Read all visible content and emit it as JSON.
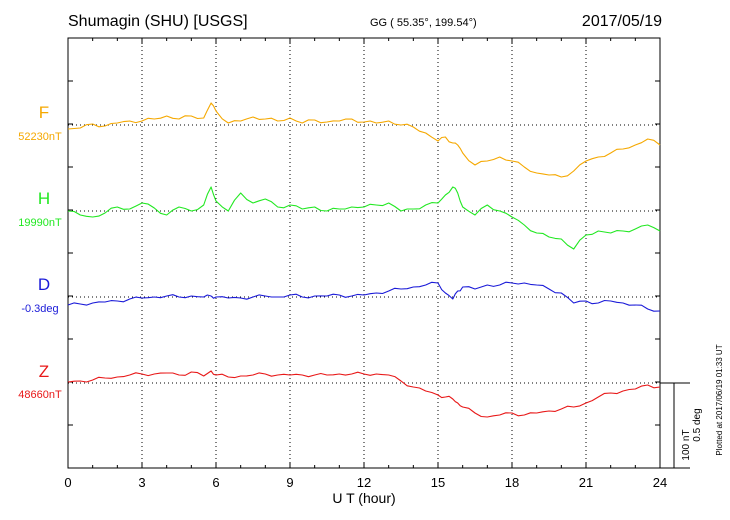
{
  "header": {
    "station": "Shumagin (SHU)  [USGS]",
    "coords": "GG ( 55.35°, 199.54°)",
    "date": "2017/05/19"
  },
  "footer": {
    "plotted_note": "Plotted at 2017/06/19 01:33 UT"
  },
  "scale_bar": {
    "label_nt": "100 nT",
    "label_deg": "0.5 deg"
  },
  "chart_data": {
    "type": "line",
    "title": "Shumagin (SHU)  [USGS]",
    "xlabel": "U T (hour)",
    "ylabel": "",
    "xlim": [
      0,
      24
    ],
    "xticks": [
      0,
      3,
      6,
      9,
      12,
      15,
      18,
      21,
      24
    ],
    "xtick_labels": [
      "0",
      "3",
      "6",
      "9",
      "12",
      "15",
      "18",
      "21",
      "24"
    ],
    "grid": "dotted, vertical every 3 h and baseline per trace",
    "y_scale_note": "100 nT / 0.5 deg per scale bar; relative offsets from baseline",
    "series": [
      {
        "name": "F",
        "baseline_label": "52230nT",
        "color": "#f5a800",
        "x": [
          0,
          0.5,
          1,
          1.5,
          2,
          2.5,
          3,
          3.5,
          4,
          4.5,
          5,
          5.5,
          5.8,
          6,
          6.5,
          7,
          7.5,
          8,
          8.5,
          9,
          9.5,
          10,
          10.5,
          11,
          11.5,
          12,
          12.5,
          13,
          13.5,
          14,
          14.5,
          15,
          15.3,
          15.6,
          15.8,
          16,
          16.5,
          17,
          17.5,
          18,
          18.5,
          19,
          19.5,
          20,
          20.5,
          21,
          21.5,
          22,
          22.5,
          23,
          23.5,
          24
        ],
        "values": [
          -4,
          -3,
          1,
          -1,
          2,
          4,
          4,
          6,
          9,
          6,
          9,
          7,
          22,
          14,
          2,
          4,
          8,
          6,
          4,
          7,
          2,
          5,
          3,
          4,
          6,
          3,
          2,
          4,
          0,
          -2,
          -8,
          -16,
          -12,
          -18,
          -20,
          -28,
          -40,
          -36,
          -32,
          -36,
          -42,
          -48,
          -50,
          -52,
          -46,
          -36,
          -32,
          -28,
          -24,
          -20,
          -14,
          -20
        ]
      },
      {
        "name": "H",
        "baseline_label": "19990nT",
        "color": "#22e822",
        "x": [
          0,
          0.5,
          1,
          1.5,
          2,
          2.5,
          3,
          3.5,
          4,
          4.5,
          5,
          5.5,
          5.8,
          6,
          6.5,
          7,
          7.5,
          8,
          8.5,
          9,
          9.5,
          10,
          10.5,
          11,
          11.5,
          12,
          12.5,
          13,
          13.5,
          14,
          14.5,
          15,
          15.3,
          15.6,
          15.8,
          16,
          16.5,
          17,
          17.5,
          18,
          18.5,
          19,
          19.5,
          20,
          20.5,
          21,
          21.5,
          22,
          22.5,
          23,
          23.5,
          24
        ],
        "values": [
          0,
          -4,
          -6,
          -2,
          4,
          2,
          8,
          3,
          -4,
          4,
          0,
          6,
          24,
          10,
          0,
          18,
          8,
          12,
          4,
          6,
          2,
          4,
          0,
          2,
          4,
          4,
          6,
          8,
          0,
          2,
          6,
          8,
          16,
          24,
          18,
          4,
          -4,
          6,
          0,
          -6,
          -14,
          -22,
          -26,
          -28,
          -38,
          -24,
          -20,
          -22,
          -20,
          -18,
          -14,
          -20
        ]
      },
      {
        "name": "D",
        "baseline_label": "-0.3deg",
        "color": "#1a1ad8",
        "x": [
          0,
          0.5,
          1,
          1.5,
          2,
          2.5,
          3,
          3.5,
          4,
          4.5,
          5,
          5.5,
          5.8,
          6,
          6.5,
          7,
          7.5,
          8,
          8.5,
          9,
          9.5,
          10,
          10.5,
          11,
          11.5,
          12,
          12.5,
          13,
          13.5,
          14,
          14.5,
          15,
          15.3,
          15.6,
          15.8,
          16,
          16.5,
          17,
          17.5,
          18,
          18.5,
          19,
          19.5,
          20,
          20.5,
          21,
          21.5,
          22,
          22.5,
          23,
          23.5,
          24
        ],
        "values": [
          -8,
          -7,
          -6,
          -5,
          -4,
          -2,
          -1,
          0,
          1,
          0,
          1,
          0,
          1,
          0,
          -1,
          -1,
          0,
          1,
          0,
          2,
          0,
          1,
          1,
          2,
          1,
          2,
          4,
          6,
          8,
          10,
          12,
          14,
          4,
          -2,
          6,
          10,
          8,
          12,
          12,
          14,
          14,
          12,
          8,
          4,
          -6,
          -4,
          -6,
          -4,
          -6,
          -8,
          -12,
          -14
        ]
      },
      {
        "name": "Z",
        "baseline_label": "48660nT",
        "color": "#e81818",
        "x": [
          0,
          0.5,
          1,
          1.5,
          2,
          2.5,
          3,
          3.5,
          4,
          4.5,
          5,
          5.5,
          5.8,
          6,
          6.5,
          7,
          7.5,
          8,
          8.5,
          9,
          9.5,
          10,
          10.5,
          11,
          11.5,
          12,
          12.5,
          13,
          13.5,
          14,
          14.5,
          15,
          15.3,
          15.6,
          15.8,
          16,
          16.5,
          17,
          17.5,
          18,
          18.5,
          19,
          19.5,
          20,
          20.5,
          21,
          21.5,
          22,
          22.5,
          23,
          23.5,
          24
        ],
        "values": [
          1,
          2,
          3,
          5,
          6,
          8,
          9,
          9,
          10,
          8,
          11,
          7,
          12,
          8,
          6,
          7,
          8,
          9,
          8,
          8,
          8,
          8,
          8,
          9,
          9,
          9,
          9,
          8,
          2,
          -4,
          -8,
          -12,
          -14,
          -16,
          -20,
          -24,
          -30,
          -34,
          -32,
          -30,
          -32,
          -30,
          -28,
          -26,
          -24,
          -20,
          -14,
          -10,
          -8,
          -6,
          -2,
          -4
        ]
      }
    ]
  }
}
